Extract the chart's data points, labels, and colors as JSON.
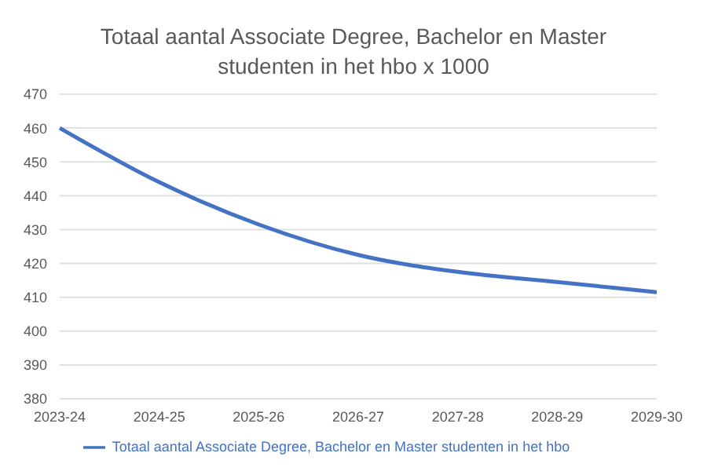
{
  "chart_data": {
    "type": "line",
    "title": "Totaal aantal Associate Degree, Bachelor en Master studenten in het hbo x 1000",
    "categories": [
      "2023-24",
      "2024-25",
      "2025-26",
      "2026-27",
      "2027-28",
      "2028-29",
      "2029-30"
    ],
    "series": [
      {
        "name": "Totaal aantal Associate Degree, Bachelor en Master studenten in het hbo",
        "color": "#4472c4",
        "values": [
          460,
          444,
          431.5,
          422.5,
          417.5,
          414.5,
          411.5
        ]
      }
    ],
    "ylim": [
      380,
      470
    ],
    "yticks": [
      380,
      390,
      400,
      410,
      420,
      430,
      440,
      450,
      460,
      470
    ],
    "grid": "y",
    "legend": "bottom",
    "marker": "none",
    "line_style": "solid"
  }
}
